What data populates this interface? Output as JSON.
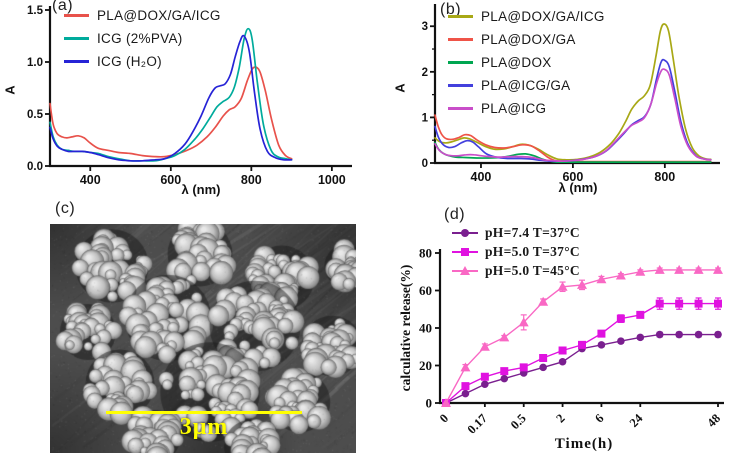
{
  "figure": {
    "panel_a_label": "(a)",
    "panel_b_label": "(b)",
    "panel_c_label": "(c)",
    "panel_d_label": "(d)",
    "background": "#ffffff"
  },
  "panel_c": {
    "description": "SEM image of aggregated spherical nanoparticles",
    "scale_bar_label": "3μm",
    "scale_bar_color": "#ffff00"
  },
  "chart_data": [
    {
      "id": "a",
      "type": "line",
      "title": "",
      "xlabel": "λ (nm)",
      "ylabel": "A",
      "xlim": [
        300,
        1050
      ],
      "ylim": [
        0,
        1.5
      ],
      "xticks": [
        400,
        600,
        800,
        1000
      ],
      "xtick_labels": [
        "400",
        "600",
        "800",
        "1000"
      ],
      "yticks": [
        0,
        0.5,
        1,
        1.5
      ],
      "ytick_labels": [
        "0.0",
        "0.5",
        "1.0",
        "1.5"
      ],
      "legend_position": "top-left",
      "grid": false,
      "series": [
        {
          "name": "PLA@DOX/GA/ICG",
          "color": "#e8524b",
          "x": [
            300,
            308,
            318,
            330,
            342,
            355,
            370,
            385,
            400,
            420,
            445,
            470,
            500,
            530,
            560,
            585,
            610,
            640,
            665,
            690,
            710,
            730,
            745,
            760,
            775,
            790,
            802,
            812,
            822,
            835,
            850,
            868,
            885,
            900
          ],
          "y": [
            0.6,
            0.4,
            0.31,
            0.28,
            0.27,
            0.28,
            0.29,
            0.27,
            0.22,
            0.17,
            0.15,
            0.13,
            0.12,
            0.1,
            0.09,
            0.09,
            0.11,
            0.15,
            0.2,
            0.28,
            0.37,
            0.48,
            0.54,
            0.57,
            0.65,
            0.82,
            0.93,
            0.95,
            0.9,
            0.72,
            0.45,
            0.2,
            0.1,
            0.07
          ]
        },
        {
          "name": "ICG (2%PVA)",
          "color": "#00ab9c",
          "x": [
            300,
            308,
            318,
            330,
            345,
            360,
            380,
            400,
            420,
            445,
            470,
            500,
            530,
            560,
            585,
            610,
            635,
            660,
            680,
            700,
            715,
            730,
            745,
            758,
            770,
            782,
            792,
            802,
            815,
            830,
            848,
            865,
            885,
            900
          ],
          "y": [
            0.42,
            0.28,
            0.2,
            0.16,
            0.15,
            0.14,
            0.14,
            0.13,
            0.12,
            0.09,
            0.07,
            0.05,
            0.05,
            0.05,
            0.07,
            0.1,
            0.16,
            0.26,
            0.36,
            0.48,
            0.57,
            0.62,
            0.66,
            0.76,
            0.95,
            1.22,
            1.32,
            1.22,
            0.8,
            0.4,
            0.16,
            0.09,
            0.07,
            0.06
          ]
        },
        {
          "name": "ICG (H₂O)",
          "color": "#2623d6",
          "x": [
            300,
            308,
            318,
            330,
            345,
            360,
            380,
            400,
            420,
            445,
            470,
            500,
            530,
            560,
            585,
            610,
            635,
            655,
            675,
            695,
            710,
            722,
            735,
            748,
            760,
            772,
            782,
            795,
            808,
            822,
            840,
            860,
            880,
            900
          ],
          "y": [
            0.37,
            0.26,
            0.19,
            0.16,
            0.14,
            0.14,
            0.14,
            0.13,
            0.11,
            0.08,
            0.06,
            0.05,
            0.05,
            0.06,
            0.07,
            0.12,
            0.21,
            0.33,
            0.48,
            0.66,
            0.75,
            0.77,
            0.79,
            0.88,
            1.05,
            1.2,
            1.25,
            1.1,
            0.7,
            0.35,
            0.14,
            0.08,
            0.06,
            0.06
          ]
        }
      ]
    },
    {
      "id": "b",
      "type": "line",
      "title": "",
      "xlabel": "λ (nm)",
      "ylabel": "A",
      "xlim": [
        300,
        920
      ],
      "ylim": [
        0,
        3.4
      ],
      "xticks": [
        400,
        600,
        800
      ],
      "xtick_labels": [
        "400",
        "600",
        "800"
      ],
      "yticks": [
        0,
        1,
        2,
        3
      ],
      "ytick_labels": [
        "0",
        "1",
        "2",
        "3"
      ],
      "yminor": [
        0.5,
        1.5,
        2.5
      ],
      "legend_position": "top-left",
      "grid": false,
      "series": [
        {
          "name": "PLA@DOX/GA/ICG",
          "color": "#a8a816",
          "x": [
            300,
            310,
            322,
            335,
            350,
            363,
            375,
            390,
            410,
            430,
            450,
            470,
            487,
            505,
            525,
            545,
            565,
            585,
            610,
            635,
            660,
            682,
            700,
            715,
            728,
            742,
            755,
            768,
            780,
            790,
            798,
            808,
            818,
            830,
            845,
            860,
            875,
            890,
            900
          ],
          "y": [
            0.55,
            0.47,
            0.44,
            0.46,
            0.51,
            0.55,
            0.53,
            0.46,
            0.36,
            0.3,
            0.31,
            0.36,
            0.41,
            0.39,
            0.3,
            0.18,
            0.09,
            0.07,
            0.08,
            0.13,
            0.24,
            0.42,
            0.65,
            0.92,
            1.18,
            1.36,
            1.47,
            1.7,
            2.3,
            2.88,
            3.05,
            2.9,
            2.3,
            1.5,
            0.75,
            0.33,
            0.15,
            0.09,
            0.08
          ]
        },
        {
          "name": "PLA@DOX/GA",
          "color": "#ef5448",
          "x": [
            300,
            307,
            315,
            325,
            338,
            352,
            365,
            378,
            392,
            410,
            430,
            450,
            470,
            490,
            508,
            525,
            545,
            562,
            580,
            620,
            700,
            800,
            900
          ],
          "y": [
            1.05,
            0.8,
            0.62,
            0.53,
            0.52,
            0.56,
            0.62,
            0.6,
            0.5,
            0.4,
            0.34,
            0.33,
            0.36,
            0.4,
            0.38,
            0.28,
            0.13,
            0.05,
            0.04,
            0.03,
            0.03,
            0.03,
            0.03
          ]
        },
        {
          "name": "PLA@DOX",
          "color": "#00a651",
          "x": [
            300,
            308,
            318,
            330,
            345,
            365,
            390,
            415,
            440,
            460,
            480,
            497,
            515,
            532,
            550,
            565,
            590,
            650,
            750,
            850,
            900
          ],
          "y": [
            0.45,
            0.3,
            0.21,
            0.16,
            0.13,
            0.12,
            0.11,
            0.11,
            0.12,
            0.15,
            0.19,
            0.2,
            0.16,
            0.09,
            0.04,
            0.02,
            0.02,
            0.02,
            0.02,
            0.02,
            0.02
          ]
        },
        {
          "name": "PLA@ICG/GA",
          "color": "#4340dd",
          "x": [
            300,
            308,
            318,
            330,
            343,
            357,
            370,
            382,
            395,
            412,
            432,
            455,
            480,
            505,
            530,
            552,
            572,
            595,
            620,
            648,
            672,
            695,
            712,
            727,
            742,
            756,
            770,
            782,
            792,
            800,
            810,
            822,
            835,
            850,
            868,
            885,
            900
          ],
          "y": [
            0.8,
            0.55,
            0.4,
            0.34,
            0.36,
            0.44,
            0.49,
            0.46,
            0.35,
            0.2,
            0.13,
            0.1,
            0.1,
            0.09,
            0.06,
            0.04,
            0.04,
            0.05,
            0.08,
            0.14,
            0.26,
            0.48,
            0.66,
            0.83,
            0.93,
            1.02,
            1.3,
            1.85,
            2.22,
            2.25,
            2.1,
            1.55,
            0.9,
            0.42,
            0.16,
            0.09,
            0.07
          ]
        },
        {
          "name": "PLA@ICG",
          "color": "#c94ec9",
          "x": [
            300,
            310,
            322,
            336,
            352,
            368,
            385,
            400,
            418,
            440,
            465,
            490,
            512,
            535,
            556,
            575,
            598,
            622,
            648,
            672,
            695,
            712,
            727,
            742,
            756,
            770,
            782,
            792,
            800,
            810,
            822,
            835,
            850,
            868,
            885,
            900
          ],
          "y": [
            0.42,
            0.27,
            0.19,
            0.16,
            0.16,
            0.18,
            0.18,
            0.16,
            0.14,
            0.13,
            0.14,
            0.14,
            0.12,
            0.07,
            0.05,
            0.04,
            0.05,
            0.08,
            0.14,
            0.27,
            0.5,
            0.68,
            0.82,
            0.9,
            1.0,
            1.3,
            1.75,
            2.02,
            2.05,
            1.92,
            1.4,
            0.8,
            0.38,
            0.15,
            0.09,
            0.07
          ]
        }
      ]
    },
    {
      "id": "d",
      "type": "line-scatter",
      "title": "",
      "xlabel": "Time(h)",
      "ylabel": "calculative release(%)",
      "ylim": [
        0,
        80
      ],
      "yticks": [
        0,
        20,
        40,
        60,
        80
      ],
      "ytick_labels": [
        "0",
        "20",
        "40",
        "60",
        "80"
      ],
      "x_labels": [
        "0",
        "",
        "0.17",
        "",
        "0.5",
        "",
        "2",
        "",
        "6",
        "",
        "24",
        "",
        "",
        "",
        "48"
      ],
      "legend_position": "top-left",
      "grid": false,
      "series": [
        {
          "name": "pH=7.4 T=37°C",
          "color": "#7a1f8f",
          "marker": "circle",
          "values": [
            0,
            5,
            10,
            13,
            16,
            19,
            22,
            29,
            31,
            33,
            35,
            36.5,
            36.5,
            36.5,
            36.5
          ],
          "errors": [
            0,
            0.8,
            0.8,
            0.8,
            0.8,
            0.8,
            1,
            1,
            1,
            1,
            1,
            1.2,
            1.2,
            1.2,
            1.2
          ]
        },
        {
          "name": "pH=5.0 T=37°C",
          "color": "#e012e0",
          "marker": "square",
          "values": [
            0,
            9,
            14,
            17,
            19,
            24,
            28,
            31,
            37,
            45,
            47,
            53,
            53,
            53,
            53
          ],
          "errors": [
            0,
            1,
            1,
            1,
            1,
            1,
            1.5,
            1,
            1.5,
            2,
            1.5,
            3,
            3,
            3,
            3
          ]
        },
        {
          "name": "pH=5.0 T=45°C",
          "color": "#f968c4",
          "marker": "triangle",
          "values": [
            0,
            19,
            30,
            35,
            43,
            54,
            62,
            63,
            66,
            68,
            70,
            71,
            71,
            71,
            71
          ],
          "errors": [
            0,
            1.5,
            1.5,
            1,
            4,
            1.5,
            2.5,
            2.5,
            1.5,
            1,
            1,
            1,
            1,
            1,
            1
          ]
        }
      ]
    }
  ]
}
